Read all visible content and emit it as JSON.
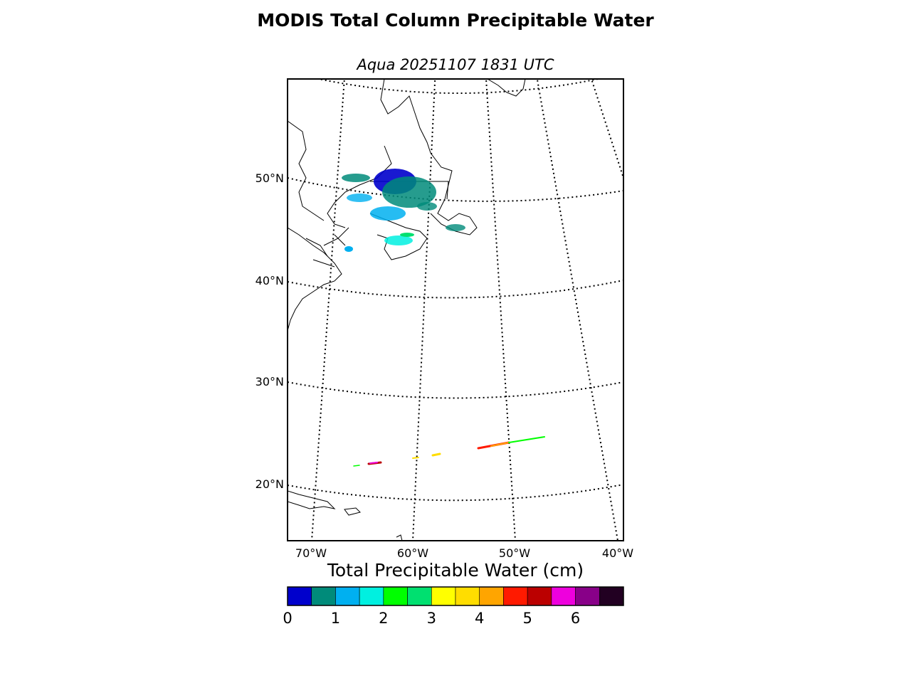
{
  "title": "MODIS Total Column Precipitable Water",
  "subtitle": "Aqua 20251107 1831 UTC",
  "map": {
    "lat_labels": [
      "50°N",
      "40°N",
      "30°N",
      "20°N"
    ],
    "lon_labels": [
      "70°W",
      "60°W",
      "50°W",
      "40°W"
    ],
    "gridlines": "dotted"
  },
  "colorbar": {
    "title": "Total Precipitable Water (cm)",
    "ticks": [
      "0",
      "1",
      "2",
      "3",
      "4",
      "5",
      "6"
    ],
    "range": [
      0,
      7
    ],
    "step": 0.5,
    "colors": [
      "#0000cc",
      "#008b7a",
      "#00b0f0",
      "#00f0e0",
      "#00ff00",
      "#00e070",
      "#ffff00",
      "#ffdd00",
      "#ffa500",
      "#ff1a00",
      "#bb0000",
      "#ee00dd",
      "#880088",
      "#220022"
    ]
  }
}
